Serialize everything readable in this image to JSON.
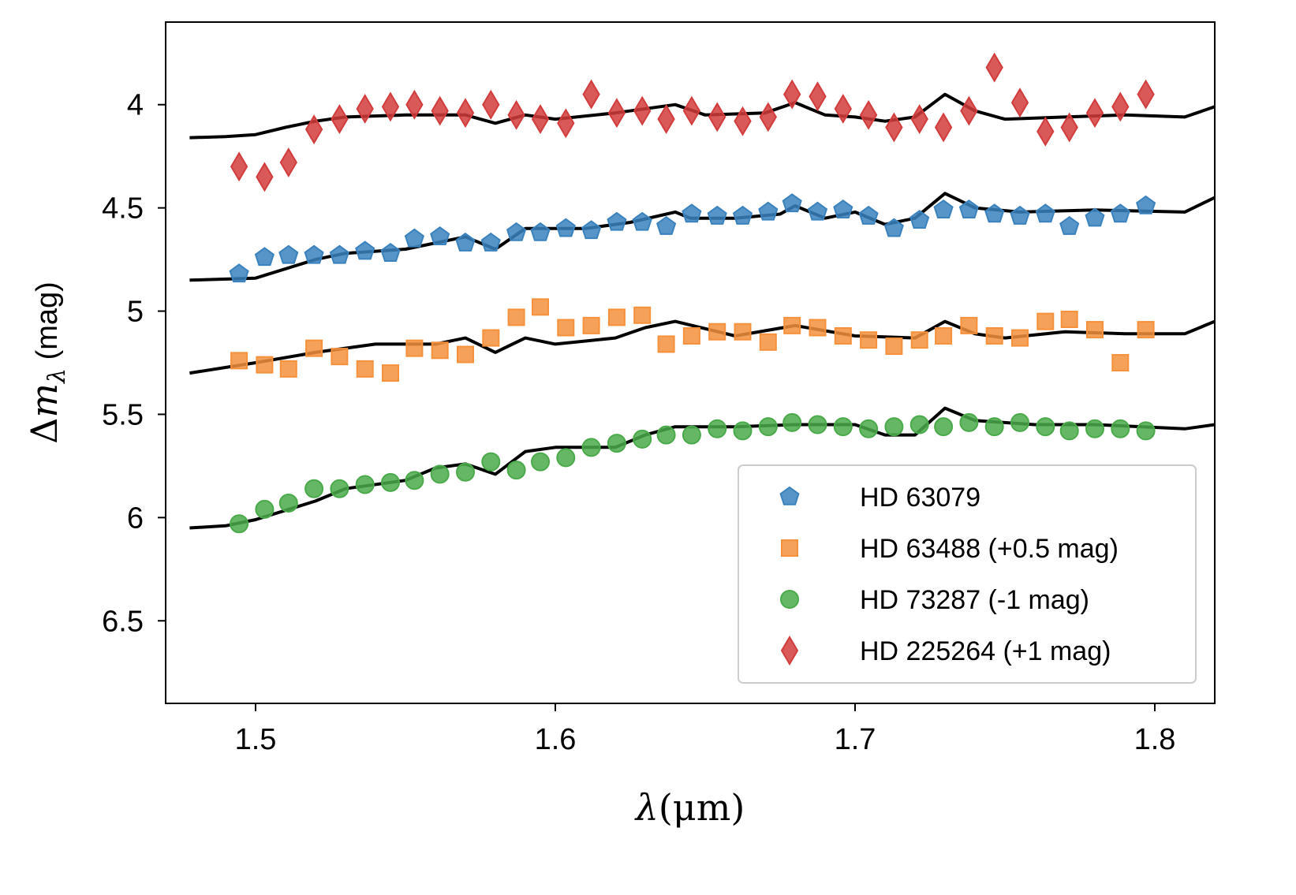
{
  "chart_data": {
    "type": "scatter",
    "xlabel": "λ(μm)",
    "ylabel": "Δm_λ (mag)",
    "ylabel_main": "Δ",
    "ylabel_m": "m",
    "ylabel_sub": "λ",
    "ylabel_unit": " (mag)",
    "xlabel_lambda": "λ",
    "xlabel_unit": "(μm)",
    "xlim": [
      1.47,
      1.82
    ],
    "ylim": [
      6.9,
      3.6
    ],
    "y_inverted": true,
    "xticks": [
      1.5,
      1.6,
      1.7,
      1.8
    ],
    "xtick_labels": [
      "1.5",
      "1.6",
      "1.7",
      "1.8"
    ],
    "yticks": [
      4,
      4.5,
      5,
      5.5,
      6,
      6.5
    ],
    "ytick_labels": [
      "4",
      "4.5",
      "5",
      "5.5",
      "6",
      "6.5"
    ],
    "legend_position": "lower-right",
    "model_color": "#000000",
    "x": [
      1.4945,
      1.503,
      1.511,
      1.5195,
      1.528,
      1.5365,
      1.545,
      1.553,
      1.5615,
      1.57,
      1.5785,
      1.587,
      1.595,
      1.6035,
      1.612,
      1.6205,
      1.629,
      1.637,
      1.6455,
      1.654,
      1.6625,
      1.671,
      1.679,
      1.6875,
      1.696,
      1.7045,
      1.713,
      1.7215,
      1.7295,
      1.738,
      1.7465,
      1.755,
      1.7635,
      1.7715,
      1.78,
      1.7885,
      1.797
    ],
    "series": [
      {
        "name": "HD 63079",
        "marker": "pentagon",
        "color": "#3a82be",
        "values": [
          4.82,
          4.74,
          4.73,
          4.73,
          4.73,
          4.71,
          4.72,
          4.65,
          4.64,
          4.67,
          4.67,
          4.62,
          4.62,
          4.6,
          4.61,
          4.57,
          4.57,
          4.59,
          4.53,
          4.54,
          4.54,
          4.52,
          4.48,
          4.52,
          4.51,
          4.54,
          4.6,
          4.56,
          4.51,
          4.51,
          4.53,
          4.54,
          4.53,
          4.59,
          4.55,
          4.53,
          4.49
        ],
        "model": {
          "x": [
            1.478,
            1.5,
            1.52,
            1.53,
            1.55,
            1.57,
            1.58,
            1.59,
            1.61,
            1.625,
            1.64,
            1.645,
            1.66,
            1.675,
            1.68,
            1.69,
            1.7,
            1.71,
            1.72,
            1.73,
            1.74,
            1.755,
            1.78,
            1.81,
            1.82
          ],
          "y": [
            4.85,
            4.84,
            4.75,
            4.72,
            4.7,
            4.64,
            4.7,
            4.6,
            4.6,
            4.57,
            4.52,
            4.55,
            4.55,
            4.53,
            4.49,
            4.55,
            4.52,
            4.58,
            4.55,
            4.43,
            4.5,
            4.52,
            4.51,
            4.52,
            4.45
          ]
        }
      },
      {
        "name": "HD 63488 (+0.5 mag)",
        "marker": "square",
        "color": "#f5913c",
        "values": [
          5.24,
          5.26,
          5.28,
          5.18,
          5.22,
          5.28,
          5.3,
          5.18,
          5.19,
          5.21,
          5.13,
          5.03,
          4.98,
          5.08,
          5.07,
          5.03,
          5.02,
          5.16,
          5.12,
          5.1,
          5.1,
          5.15,
          5.07,
          5.08,
          5.12,
          5.14,
          5.17,
          5.14,
          5.12,
          5.07,
          5.12,
          5.13,
          5.05,
          5.04,
          5.09,
          5.25,
          5.09
        ],
        "model": {
          "x": [
            1.478,
            1.5,
            1.52,
            1.54,
            1.56,
            1.57,
            1.58,
            1.59,
            1.6,
            1.62,
            1.63,
            1.64,
            1.66,
            1.68,
            1.7,
            1.72,
            1.73,
            1.74,
            1.75,
            1.77,
            1.79,
            1.81,
            1.82
          ],
          "y": [
            5.3,
            5.25,
            5.2,
            5.16,
            5.16,
            5.13,
            5.2,
            5.13,
            5.16,
            5.13,
            5.08,
            5.05,
            5.12,
            5.07,
            5.12,
            5.13,
            5.05,
            5.11,
            5.13,
            5.1,
            5.11,
            5.11,
            5.05
          ]
        }
      },
      {
        "name": "HD 73287 (-1 mag)",
        "marker": "circle",
        "color": "#4aaa4a",
        "values": [
          6.03,
          5.96,
          5.93,
          5.86,
          5.86,
          5.84,
          5.83,
          5.82,
          5.79,
          5.78,
          5.73,
          5.77,
          5.73,
          5.71,
          5.66,
          5.64,
          5.62,
          5.6,
          5.6,
          5.57,
          5.58,
          5.56,
          5.54,
          5.55,
          5.56,
          5.57,
          5.56,
          5.55,
          5.56,
          5.54,
          5.56,
          5.54,
          5.56,
          5.58,
          5.57,
          5.57,
          5.58
        ],
        "model": {
          "x": [
            1.478,
            1.49,
            1.5,
            1.52,
            1.53,
            1.55,
            1.56,
            1.57,
            1.58,
            1.59,
            1.6,
            1.62,
            1.63,
            1.64,
            1.66,
            1.68,
            1.7,
            1.71,
            1.72,
            1.73,
            1.74,
            1.76,
            1.78,
            1.81,
            1.82
          ],
          "y": [
            6.05,
            6.04,
            6.01,
            5.92,
            5.86,
            5.82,
            5.76,
            5.74,
            5.79,
            5.68,
            5.66,
            5.66,
            5.6,
            5.56,
            5.56,
            5.55,
            5.55,
            5.6,
            5.6,
            5.47,
            5.53,
            5.55,
            5.55,
            5.57,
            5.55
          ]
        }
      },
      {
        "name": "HD 225264 (+1 mag)",
        "marker": "diamond",
        "color": "#d23c3c",
        "values": [
          4.3,
          4.35,
          4.28,
          4.12,
          4.07,
          4.02,
          4.01,
          4.0,
          4.03,
          4.04,
          4.0,
          4.05,
          4.07,
          4.09,
          3.95,
          4.04,
          4.03,
          4.07,
          4.03,
          4.06,
          4.08,
          4.06,
          3.95,
          3.96,
          4.02,
          4.05,
          4.11,
          4.07,
          4.11,
          4.03,
          3.82,
          3.99,
          4.13,
          4.11,
          4.04,
          4.01,
          3.95
        ],
        "model": {
          "x": [
            1.478,
            1.49,
            1.5,
            1.51,
            1.52,
            1.53,
            1.55,
            1.57,
            1.58,
            1.59,
            1.6,
            1.62,
            1.64,
            1.65,
            1.67,
            1.68,
            1.69,
            1.7,
            1.71,
            1.72,
            1.73,
            1.74,
            1.75,
            1.77,
            1.79,
            1.81,
            1.82
          ],
          "y": [
            4.16,
            4.155,
            4.145,
            4.11,
            4.08,
            4.06,
            4.05,
            4.05,
            4.09,
            4.05,
            4.07,
            4.04,
            4.0,
            4.05,
            4.04,
            3.99,
            4.05,
            4.06,
            4.08,
            4.06,
            3.95,
            4.03,
            4.07,
            4.06,
            4.05,
            4.06,
            4.01
          ]
        }
      }
    ]
  }
}
